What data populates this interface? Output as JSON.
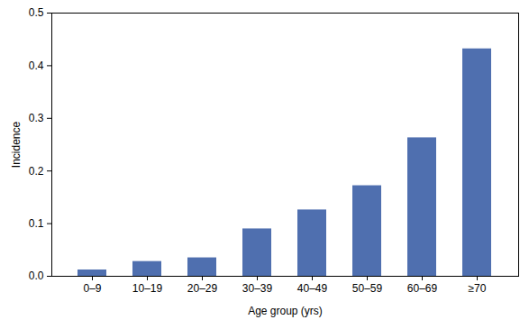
{
  "chart_data": {
    "type": "bar",
    "x_label": "Age group (yrs)",
    "y_label": "Incidence",
    "categories": [
      "0–9",
      "10–19",
      "20–29",
      "30–39",
      "40–49",
      "50–59",
      "60–69",
      "≥70"
    ],
    "values": [
      0.012,
      0.028,
      0.035,
      0.09,
      0.126,
      0.172,
      0.263,
      0.432
    ],
    "color": "#4f6faf",
    "ylim": [
      0,
      0.5
    ],
    "yticks": [
      {
        "value": 0,
        "label": "0.0"
      },
      0.1,
      0.2,
      0.3,
      0.4,
      0.5
    ],
    "grid": false
  }
}
